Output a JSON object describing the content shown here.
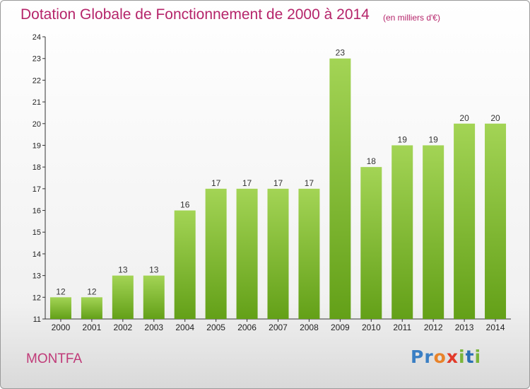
{
  "header": {
    "title": "Dotation Globale de Fonctionnement de 2000 à 2014",
    "unit": "(en milliers d'€)"
  },
  "footer": {
    "commune": "MONTFA",
    "logo": "Proxiti"
  },
  "colors": {
    "title": "#b5246a",
    "bar_light": "#9fd24f",
    "bar_dark": "#66a11b",
    "logo_blue": "#3a7fc4",
    "logo_orange": "#e8832a",
    "logo_red": "#e23a2a",
    "logo_green": "#7ab53a"
  },
  "chart_data": {
    "type": "bar",
    "title": "Dotation Globale de Fonctionnement de 2000 à 2014",
    "subtitle": "(en milliers d'€)",
    "xlabel": "",
    "ylabel": "",
    "categories": [
      "2000",
      "2001",
      "2002",
      "2003",
      "2004",
      "2005",
      "2006",
      "2007",
      "2008",
      "2009",
      "2010",
      "2011",
      "2012",
      "2013",
      "2014"
    ],
    "values": [
      12,
      12,
      13,
      13,
      16,
      17,
      17,
      17,
      17,
      23,
      18,
      19,
      19,
      20,
      20
    ],
    "ylim": [
      11,
      24
    ],
    "yticks": [
      11,
      12,
      13,
      14,
      15,
      16,
      17,
      18,
      19,
      20,
      21,
      22,
      23,
      24
    ],
    "grid": false,
    "legend": "none"
  }
}
